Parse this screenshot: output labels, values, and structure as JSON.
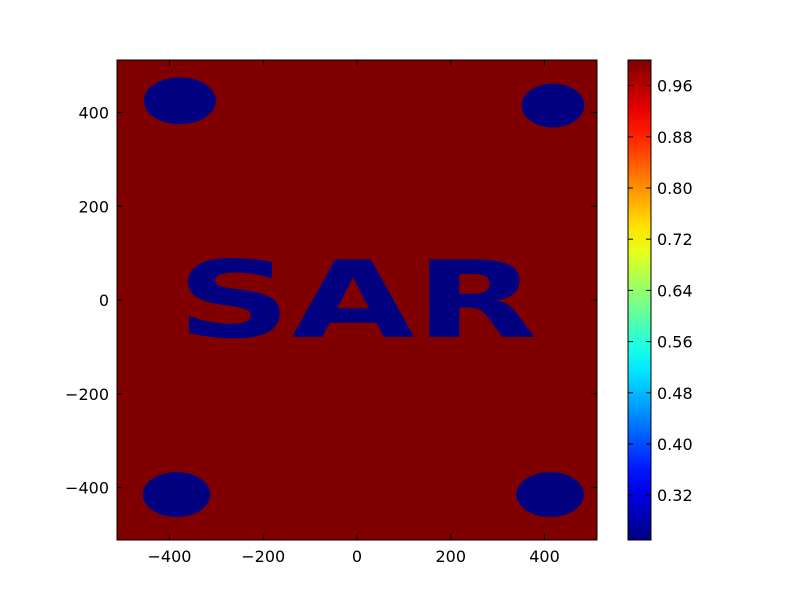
{
  "chart_data": {
    "type": "heatmap",
    "title": "",
    "xlabel": "",
    "ylabel": "",
    "xlim": [
      -512,
      512
    ],
    "ylim": [
      512,
      -512
    ],
    "x_ticks": [
      -400,
      -200,
      0,
      200,
      400
    ],
    "x_tick_labels": [
      "−400",
      "−200",
      "0",
      "200",
      "400"
    ],
    "y_ticks": [
      -400,
      -200,
      0,
      200,
      400
    ],
    "y_tick_labels": [
      "−400",
      "−200",
      "0",
      "200",
      "400"
    ],
    "colormap": "jet",
    "color_range": [
      0.25,
      1.0
    ],
    "colorbar_ticks": [
      0.32,
      0.4,
      0.48,
      0.56,
      0.64,
      0.72,
      0.8,
      0.88,
      0.96
    ],
    "colorbar_tick_labels": [
      "0.32",
      "0.40",
      "0.48",
      "0.56",
      "0.64",
      "0.72",
      "0.80",
      "0.88",
      "0.96"
    ],
    "background": {
      "value": 1.0,
      "color": "#800000"
    },
    "features": {
      "value": 0.25,
      "color": "#000080",
      "text": {
        "content": "SAR",
        "center": [
          0,
          0
        ],
        "width": 770,
        "height": 265
      },
      "ellipses": [
        {
          "center": [
            -385,
            -415
          ],
          "rx": 72,
          "ry": 48
        },
        {
          "center": [
            412,
            -415
          ],
          "rx": 72,
          "ry": 48
        },
        {
          "center": [
            -378,
            425
          ],
          "rx": 77,
          "ry": 50
        },
        {
          "center": [
            418,
            415
          ],
          "rx": 67,
          "ry": 47
        }
      ]
    }
  }
}
